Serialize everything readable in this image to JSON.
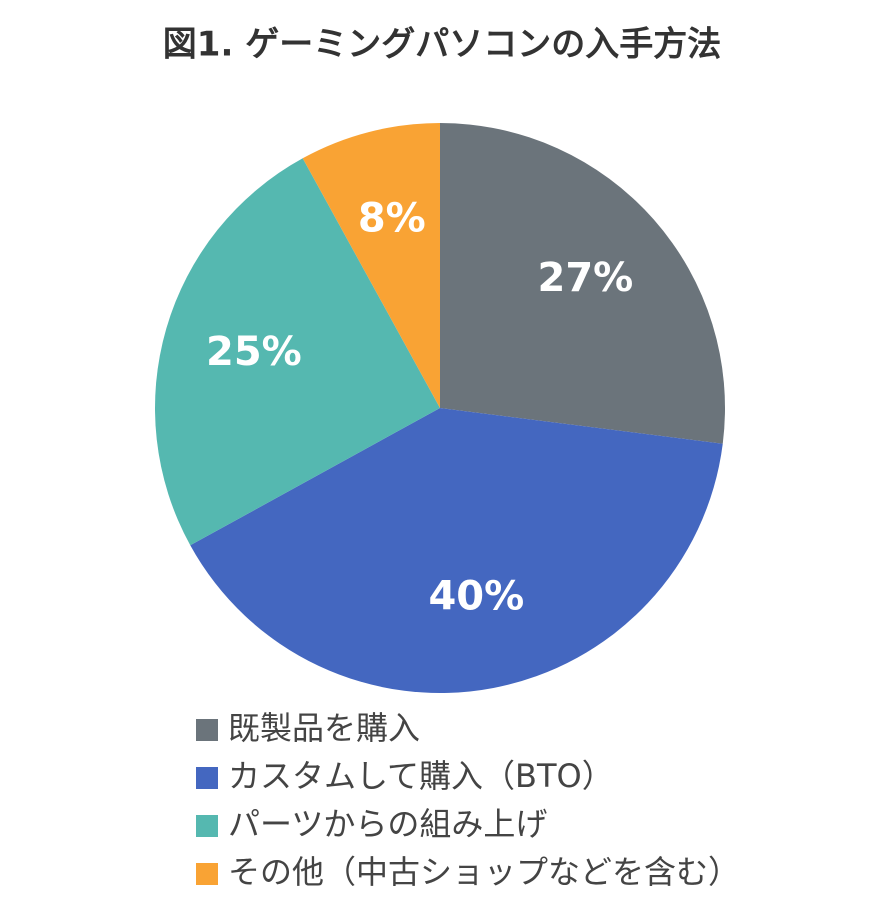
{
  "chart_data": {
    "type": "pie",
    "title": "図1. ゲーミングパソコンの入手方法",
    "categories": [
      "既製品を購入",
      "カスタムして購入（BTO）",
      "パーツからの組み上げ",
      "その他（中古ショップなどを含む）"
    ],
    "values": [
      27,
      40,
      25,
      8
    ],
    "value_labels": [
      "27%",
      "40%",
      "25%",
      "8%"
    ],
    "colors": [
      "#6b747b",
      "#4467c0",
      "#55b8b0",
      "#f9a334"
    ]
  }
}
